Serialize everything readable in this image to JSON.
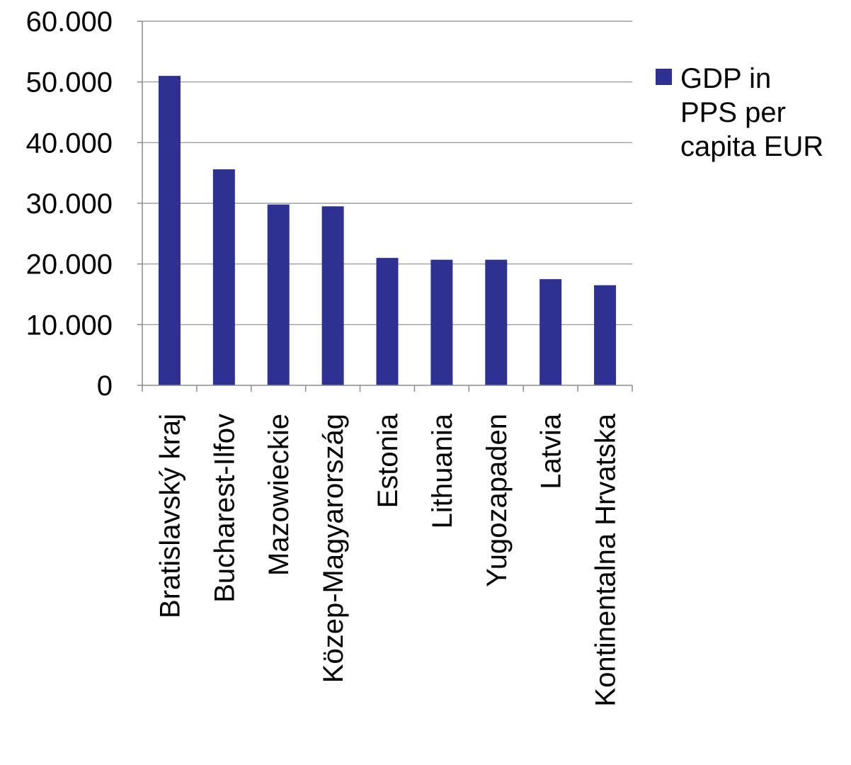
{
  "chart_data": {
    "type": "bar",
    "categories": [
      "Bratislavský kraj",
      "Bucharest-Ilfov",
      "Mazowieckie",
      "Közep-Magyarország",
      "Estonia",
      "Lithuania",
      "Yugozapaden",
      "Latvia",
      "Kontinentalna Hrvatska"
    ],
    "series": [
      {
        "name": "GDP in PPS per capita EUR",
        "values": [
          51000,
          35600,
          29800,
          29500,
          21000,
          20700,
          20700,
          17500,
          16500
        ],
        "color": "#2E3192"
      }
    ],
    "ylim": [
      0,
      60000
    ],
    "yticks": [
      0,
      10000,
      20000,
      30000,
      40000,
      50000,
      60000
    ],
    "ytick_labels": [
      "0",
      "10.000",
      "20.000",
      "30.000",
      "40.000",
      "50.000",
      "60.000"
    ],
    "grid": true,
    "legend_position": "right",
    "legend_lines": [
      "GDP in",
      "PPS per",
      "capita EUR"
    ],
    "title": "",
    "xlabel": "",
    "ylabel": ""
  }
}
